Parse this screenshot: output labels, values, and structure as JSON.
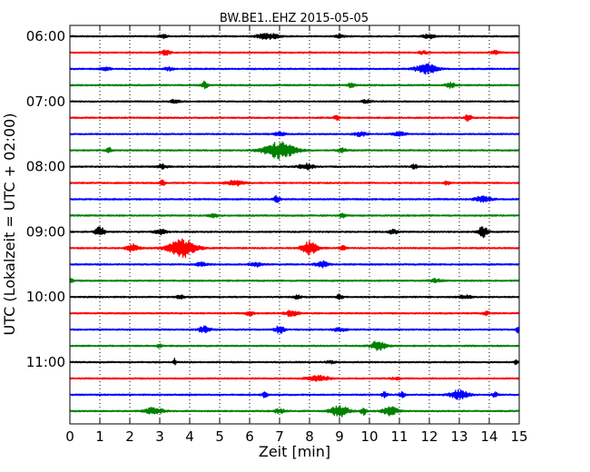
{
  "chart_data": {
    "type": "line",
    "title": "BW.BE1..EHZ 2015-05-05",
    "xlabel": "Zeit  [min]",
    "ylabel": "UTC (Lokalzeit = UTC + 02:00)",
    "xlim": [
      0,
      15
    ],
    "x_ticks": [
      "0",
      "1",
      "2",
      "3",
      "4",
      "5",
      "6",
      "7",
      "8",
      "9",
      "10",
      "11",
      "12",
      "13",
      "14",
      "15"
    ],
    "y_ticks": [
      "06:00",
      "07:00",
      "08:00",
      "09:00",
      "10:00",
      "11:00"
    ],
    "y_tick_rows": [
      0,
      4,
      8,
      12,
      16,
      20
    ],
    "grid": "vertical dotted",
    "trace_interval_min": 15,
    "trace_colors": [
      "#000000",
      "#ff0000",
      "#0000ff",
      "#008000"
    ],
    "traces": [
      {
        "start": "06:00",
        "color": "#000000",
        "events": [
          [
            6.6,
            0.35,
            0.35
          ],
          [
            12.0,
            0.25,
            0.2
          ],
          [
            3.1,
            0.2,
            0.15
          ],
          [
            9.0,
            0.2,
            0.15
          ]
        ]
      },
      {
        "start": "06:15",
        "color": "#ff0000",
        "events": [
          [
            3.2,
            0.3,
            0.15
          ],
          [
            11.8,
            0.2,
            0.15
          ],
          [
            14.2,
            0.2,
            0.15
          ]
        ]
      },
      {
        "start": "06:30",
        "color": "#0000ff",
        "events": [
          [
            11.9,
            0.6,
            0.35
          ],
          [
            1.2,
            0.2,
            0.15
          ],
          [
            3.3,
            0.2,
            0.15
          ]
        ]
      },
      {
        "start": "06:45",
        "color": "#008000",
        "events": [
          [
            4.5,
            0.45,
            0.1
          ],
          [
            9.4,
            0.35,
            0.1
          ],
          [
            12.7,
            0.3,
            0.15
          ]
        ]
      },
      {
        "start": "07:00",
        "color": "#000000",
        "events": [
          [
            3.5,
            0.2,
            0.15
          ],
          [
            9.9,
            0.2,
            0.15
          ]
        ]
      },
      {
        "start": "07:15",
        "color": "#ff0000",
        "events": [
          [
            13.3,
            0.5,
            0.1
          ],
          [
            8.9,
            0.25,
            0.1
          ]
        ]
      },
      {
        "start": "07:30",
        "color": "#0000ff",
        "events": [
          [
            9.7,
            0.25,
            0.2
          ],
          [
            11.0,
            0.25,
            0.2
          ],
          [
            7.0,
            0.2,
            0.2
          ]
        ]
      },
      {
        "start": "07:45",
        "color": "#008000",
        "events": [
          [
            7.0,
            1.0,
            0.5
          ],
          [
            1.3,
            0.3,
            0.1
          ],
          [
            9.1,
            0.25,
            0.15
          ]
        ]
      },
      {
        "start": "08:00",
        "color": "#000000",
        "events": [
          [
            7.9,
            0.35,
            0.25
          ],
          [
            11.5,
            0.25,
            0.1
          ],
          [
            3.1,
            0.25,
            0.15
          ]
        ]
      },
      {
        "start": "08:15",
        "color": "#ff0000",
        "events": [
          [
            5.5,
            0.35,
            0.3
          ],
          [
            3.1,
            0.3,
            0.1
          ],
          [
            12.6,
            0.25,
            0.1
          ]
        ]
      },
      {
        "start": "08:30",
        "color": "#0000ff",
        "events": [
          [
            6.9,
            0.45,
            0.1
          ],
          [
            13.8,
            0.3,
            0.3
          ]
        ]
      },
      {
        "start": "08:45",
        "color": "#008000",
        "events": [
          [
            9.1,
            0.25,
            0.1
          ],
          [
            4.8,
            0.2,
            0.15
          ]
        ]
      },
      {
        "start": "09:00",
        "color": "#000000",
        "events": [
          [
            13.8,
            0.7,
            0.15
          ],
          [
            1.0,
            0.6,
            0.15
          ],
          [
            3.0,
            0.3,
            0.2
          ],
          [
            10.8,
            0.25,
            0.15
          ]
        ]
      },
      {
        "start": "09:15",
        "color": "#ff0000",
        "events": [
          [
            3.75,
            1.1,
            0.45
          ],
          [
            8.0,
            0.8,
            0.25
          ],
          [
            2.1,
            0.5,
            0.2
          ],
          [
            9.1,
            0.3,
            0.1
          ]
        ]
      },
      {
        "start": "09:30",
        "color": "#0000ff",
        "events": [
          [
            8.4,
            0.4,
            0.2
          ],
          [
            4.4,
            0.25,
            0.2
          ],
          [
            6.2,
            0.25,
            0.2
          ]
        ]
      },
      {
        "start": "09:45",
        "color": "#008000",
        "events": [
          [
            0.05,
            0.4,
            0.05
          ],
          [
            12.2,
            0.2,
            0.2
          ]
        ]
      },
      {
        "start": "10:00",
        "color": "#000000",
        "events": [
          [
            7.6,
            0.3,
            0.1
          ],
          [
            9.0,
            0.3,
            0.1
          ],
          [
            3.7,
            0.2,
            0.15
          ],
          [
            13.2,
            0.2,
            0.2
          ]
        ]
      },
      {
        "start": "10:15",
        "color": "#ff0000",
        "events": [
          [
            7.4,
            0.4,
            0.2
          ],
          [
            6.0,
            0.25,
            0.15
          ],
          [
            13.9,
            0.25,
            0.1
          ]
        ]
      },
      {
        "start": "10:30",
        "color": "#0000ff",
        "events": [
          [
            7.0,
            0.5,
            0.15
          ],
          [
            4.5,
            0.4,
            0.2
          ],
          [
            14.95,
            0.4,
            0.05
          ],
          [
            9.0,
            0.25,
            0.2
          ]
        ]
      },
      {
        "start": "10:45",
        "color": "#008000",
        "events": [
          [
            10.3,
            0.6,
            0.25
          ],
          [
            3.0,
            0.2,
            0.1
          ]
        ]
      },
      {
        "start": "11:00",
        "color": "#000000",
        "events": [
          [
            3.5,
            0.4,
            0.05
          ],
          [
            14.9,
            0.3,
            0.05
          ],
          [
            8.7,
            0.15,
            0.15
          ]
        ]
      },
      {
        "start": "11:15",
        "color": "#ff0000",
        "events": [
          [
            8.3,
            0.35,
            0.35
          ],
          [
            10.9,
            0.15,
            0.15
          ]
        ]
      },
      {
        "start": "11:30",
        "color": "#0000ff",
        "events": [
          [
            13.0,
            0.55,
            0.3
          ],
          [
            6.5,
            0.3,
            0.1
          ],
          [
            10.5,
            0.3,
            0.1
          ],
          [
            14.2,
            0.3,
            0.1
          ],
          [
            11.1,
            0.3,
            0.1
          ]
        ]
      },
      {
        "start": "11:45",
        "color": "#008000",
        "events": [
          [
            9.0,
            0.7,
            0.3
          ],
          [
            10.7,
            0.5,
            0.25
          ],
          [
            2.8,
            0.4,
            0.3
          ],
          [
            9.8,
            0.45,
            0.1
          ],
          [
            7.0,
            0.25,
            0.2
          ]
        ]
      }
    ]
  }
}
